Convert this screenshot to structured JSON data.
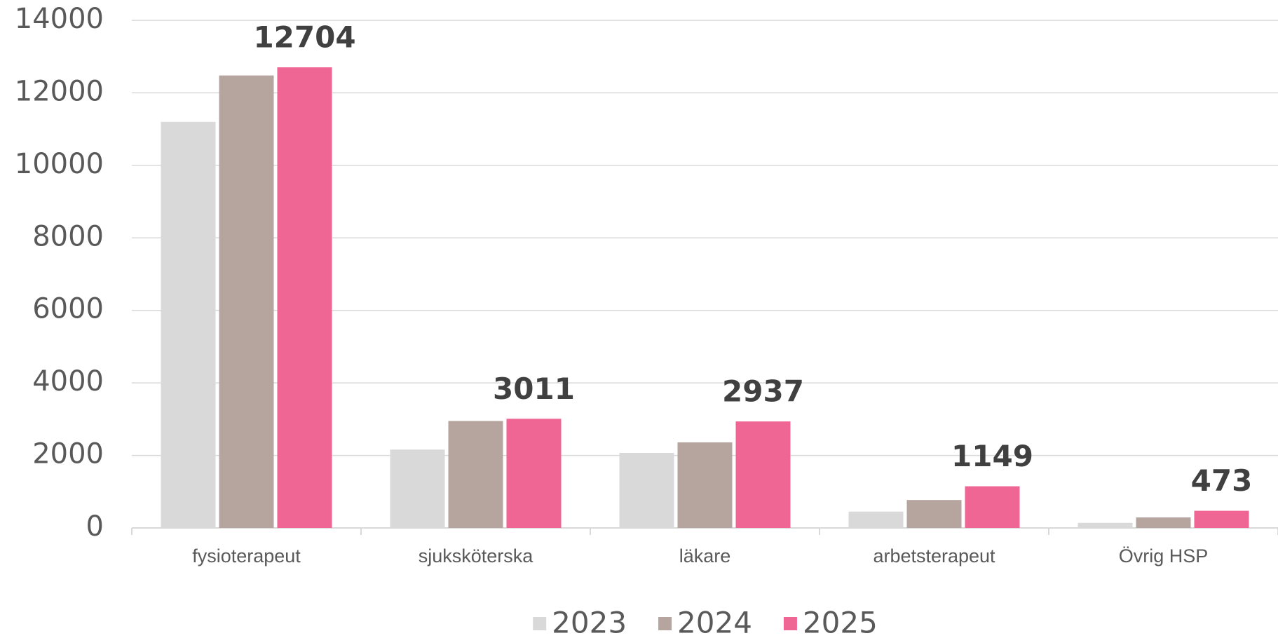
{
  "chart_data": {
    "type": "bar",
    "categories": [
      "fysioterapeut",
      "sjuksköterska",
      "läkare",
      "arbetsterapeut",
      "Övrig HSP"
    ],
    "series": [
      {
        "name": "2023",
        "color": "#d9d9d9",
        "values": [
          11200,
          2160,
          2070,
          450,
          140
        ]
      },
      {
        "name": "2024",
        "color": "#b5a59e",
        "values": [
          12480,
          2950,
          2360,
          770,
          290
        ]
      },
      {
        "name": "2025",
        "color": "#ef6694",
        "values": [
          12704,
          3011,
          2937,
          1149,
          473
        ],
        "data_labels": true
      }
    ],
    "ylim": [
      0,
      14000
    ],
    "yticks": [
      0,
      2000,
      4000,
      6000,
      8000,
      10000,
      12000,
      14000
    ],
    "grid": true,
    "legend": "bottom"
  }
}
